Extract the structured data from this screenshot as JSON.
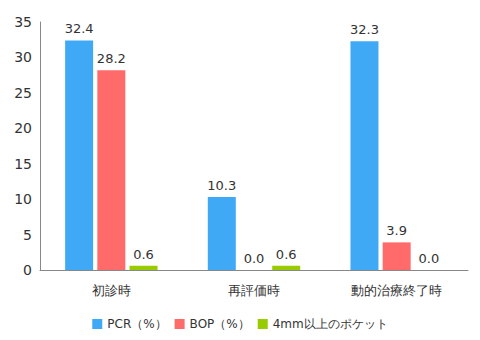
{
  "chart_data": {
    "type": "bar",
    "categories": [
      "初診時",
      "再評価時",
      "動的治療終了時"
    ],
    "series": [
      {
        "name": "PCR（%）",
        "color": "#3fa9f5",
        "values": [
          32.4,
          10.3,
          32.3
        ],
        "value_labels": [
          "32.4",
          "10.3",
          "32.3"
        ]
      },
      {
        "name": "BOP（%）",
        "color": "#ff6b6b",
        "values": [
          28.2,
          0,
          3.9
        ],
        "value_labels": [
          "28.2",
          "0.0",
          "3.9"
        ]
      },
      {
        "name": "4mm以上のポケット",
        "color": "#99cc00",
        "values": [
          0.6,
          0.6,
          0
        ],
        "value_labels": [
          "0.6",
          "0.6",
          "0.0"
        ]
      }
    ],
    "ylim": [
      0,
      35
    ],
    "yticks": [
      0,
      5,
      10,
      15,
      20,
      25,
      30,
      35
    ],
    "grid": false,
    "legend": "bottom",
    "data_labels": true
  }
}
